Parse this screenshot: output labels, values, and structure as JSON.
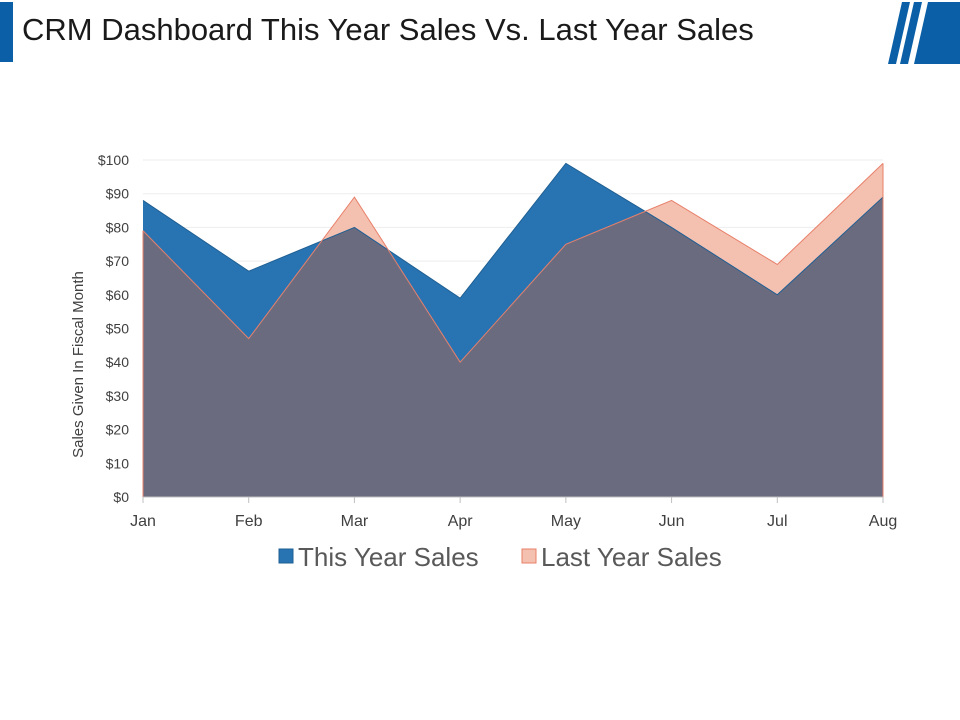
{
  "page": {
    "title": "CRM Dashboard This Year Sales Vs. Last Year Sales",
    "accent_color": "#0a5fa6"
  },
  "chart_data": {
    "type": "area",
    "categories": [
      "Jan",
      "Feb",
      "Mar",
      "Apr",
      "May",
      "Jun",
      "Jul",
      "Aug"
    ],
    "series": [
      {
        "name": "This Year Sales",
        "values": [
          88,
          67,
          80,
          59,
          99,
          80,
          60,
          89
        ],
        "color": "#2874b2"
      },
      {
        "name": "Last Year Sales",
        "values": [
          79,
          47,
          89,
          40,
          75,
          88,
          69,
          99
        ],
        "color": "#f4c0b0",
        "stroke": "#e8806a"
      }
    ],
    "overlap_color": "#6b6b80",
    "ylabel": "Sales Given In Fiscal Month",
    "xlabel": "",
    "ylim": [
      0,
      100
    ],
    "yticks": [
      0,
      10,
      20,
      30,
      40,
      50,
      60,
      70,
      80,
      90,
      100
    ],
    "ytick_labels": [
      "$0",
      "$10",
      "$20",
      "$30",
      "$40",
      "$50",
      "$60",
      "$70",
      "$80",
      "$90",
      "$100"
    ],
    "grid": true,
    "legend": "bottom"
  }
}
